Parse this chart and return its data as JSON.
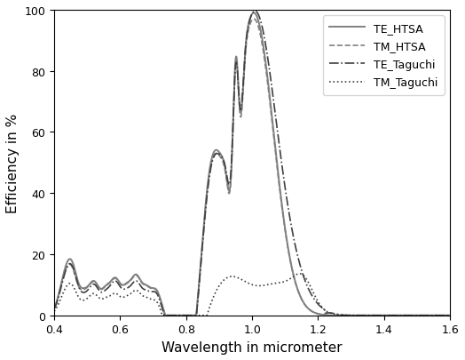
{
  "title": "",
  "xlabel": "Wavelength in micrometer",
  "ylabel": "Efficiency in %",
  "xlim": [
    0.4,
    1.6
  ],
  "ylim": [
    0,
    100
  ],
  "xticks": [
    0.4,
    0.6,
    0.8,
    1.0,
    1.2,
    1.4,
    1.6
  ],
  "yticks": [
    0,
    20,
    40,
    60,
    80,
    100
  ],
  "legend": [
    {
      "label": "TE_HTSA",
      "linestyle": "-",
      "color": "#808080",
      "linewidth": 1.4
    },
    {
      "label": "TM_HTSA",
      "linestyle": "--",
      "color": "#808080",
      "linewidth": 1.2
    },
    {
      "label": "TE_Taguchi",
      "linestyle": "-.",
      "color": "#404040",
      "linewidth": 1.2
    },
    {
      "label": "TM_Taguchi",
      "linestyle": ":",
      "color": "#404040",
      "linewidth": 1.2
    }
  ],
  "background_color": "#ffffff",
  "figsize": [
    5.24,
    4.06
  ],
  "dpi": 100
}
